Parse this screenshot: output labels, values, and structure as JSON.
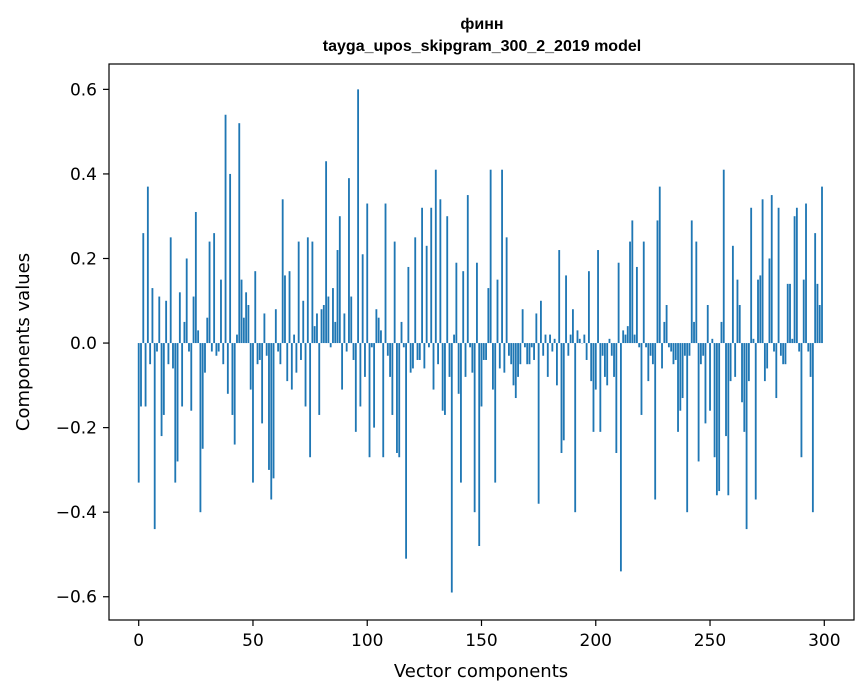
{
  "chart_data": {
    "type": "bar",
    "title": "финн",
    "subtitle": "tayga_upos_skipgram_300_2_2019 model",
    "xlabel": "Vector components",
    "ylabel": "Components values",
    "xlim": [
      -13,
      313
    ],
    "ylim": [
      -0.655,
      0.66
    ],
    "xticks": [
      0,
      50,
      100,
      150,
      200,
      250,
      300
    ],
    "xtick_labels": [
      "0",
      "50",
      "100",
      "150",
      "200",
      "250",
      "300"
    ],
    "yticks": [
      -0.6,
      -0.4,
      -0.2,
      0.0,
      0.2,
      0.4,
      0.6
    ],
    "ytick_labels": [
      "−0.6",
      "−0.4",
      "−0.2",
      "0.0",
      "0.2",
      "0.4",
      "0.6"
    ],
    "bar_color": "#1f77b4",
    "values": [
      -0.33,
      -0.15,
      0.26,
      -0.15,
      0.37,
      -0.05,
      0.13,
      -0.44,
      -0.02,
      0.11,
      -0.22,
      -0.17,
      0.1,
      -0.05,
      0.25,
      -0.06,
      -0.33,
      -0.28,
      0.12,
      -0.15,
      0.05,
      0.2,
      -0.02,
      -0.16,
      0.11,
      0.31,
      0.03,
      -0.4,
      -0.25,
      -0.07,
      0.06,
      0.24,
      -0.02,
      0.26,
      -0.03,
      -0.02,
      0.15,
      -0.05,
      0.54,
      -0.12,
      0.4,
      -0.17,
      -0.24,
      0.02,
      0.52,
      0.15,
      0.06,
      0.12,
      0.09,
      -0.11,
      -0.33,
      0.17,
      -0.05,
      -0.04,
      -0.19,
      0.07,
      -0.03,
      -0.3,
      -0.37,
      -0.32,
      0.08,
      -0.02,
      -0.05,
      0.34,
      0.16,
      -0.09,
      0.17,
      -0.11,
      0.02,
      -0.07,
      0.24,
      -0.04,
      0.1,
      -0.15,
      0.25,
      -0.27,
      0.24,
      0.04,
      0.07,
      -0.17,
      0.08,
      0.09,
      0.43,
      0.11,
      -0.01,
      0.13,
      0.05,
      0.22,
      0.3,
      -0.11,
      0.07,
      -0.02,
      0.39,
      0.11,
      -0.04,
      -0.21,
      0.6,
      -0.15,
      0.21,
      -0.08,
      0.33,
      -0.27,
      -0.01,
      -0.2,
      0.08,
      0.06,
      0.03,
      -0.27,
      0.33,
      -0.03,
      -0.08,
      -0.17,
      0.24,
      -0.26,
      -0.27,
      0.05,
      -0.01,
      -0.51,
      0.18,
      -0.07,
      -0.06,
      0.25,
      -0.04,
      -0.04,
      0.32,
      -0.06,
      0.23,
      -0.01,
      0.32,
      -0.11,
      0.41,
      -0.05,
      0.34,
      -0.16,
      -0.17,
      0.3,
      -0.08,
      -0.59,
      0.02,
      0.19,
      -0.12,
      -0.33,
      0.17,
      -0.08,
      0.35,
      -0.01,
      -0.07,
      -0.4,
      0.19,
      -0.48,
      -0.15,
      -0.04,
      -0.04,
      0.13,
      0.41,
      -0.11,
      -0.33,
      0.15,
      -0.06,
      0.41,
      -0.07,
      0.25,
      -0.03,
      -0.05,
      -0.1,
      -0.13,
      -0.08,
      -0.05,
      0.08,
      -0.01,
      -0.05,
      -0.05,
      -0.01,
      -0.04,
      0.07,
      -0.38,
      0.1,
      -0.03,
      0.02,
      -0.08,
      0.02,
      -0.02,
      0.01,
      -0.1,
      0.22,
      -0.26,
      -0.23,
      0.16,
      -0.03,
      0.02,
      0.08,
      -0.4,
      0.03,
      0.01,
      0.0,
      0.02,
      -0.04,
      0.17,
      -0.09,
      -0.21,
      -0.11,
      0.22,
      -0.21,
      -0.03,
      -0.08,
      -0.1,
      0.01,
      -0.03,
      -0.08,
      -0.26,
      0.19,
      -0.54,
      0.03,
      0.02,
      0.04,
      0.24,
      0.29,
      0.02,
      0.18,
      -0.01,
      -0.17,
      0.24,
      -0.01,
      -0.09,
      -0.03,
      -0.05,
      -0.37,
      0.29,
      0.37,
      -0.06,
      0.05,
      0.09,
      -0.01,
      -0.02,
      -0.05,
      -0.04,
      -0.21,
      -0.16,
      -0.13,
      -0.03,
      -0.4,
      -0.03,
      0.29,
      0.05,
      0.24,
      -0.28,
      -0.05,
      -0.03,
      -0.19,
      0.09,
      -0.16,
      0.01,
      -0.27,
      -0.36,
      -0.35,
      0.05,
      0.41,
      -0.22,
      -0.36,
      -0.09,
      0.23,
      -0.08,
      0.15,
      0.09,
      -0.14,
      -0.21,
      -0.44,
      -0.09,
      0.32,
      0.01,
      -0.37,
      0.15,
      0.16,
      0.34,
      -0.09,
      -0.06,
      0.2,
      0.35,
      -0.02,
      -0.13,
      0.32,
      -0.03,
      -0.05,
      -0.05,
      0.14,
      0.14,
      0.01,
      0.3,
      0.32,
      -0.02,
      -0.27,
      0.15,
      0.33,
      -0.02,
      -0.08,
      -0.4,
      0.26,
      0.14,
      0.09,
      0.37
    ]
  }
}
